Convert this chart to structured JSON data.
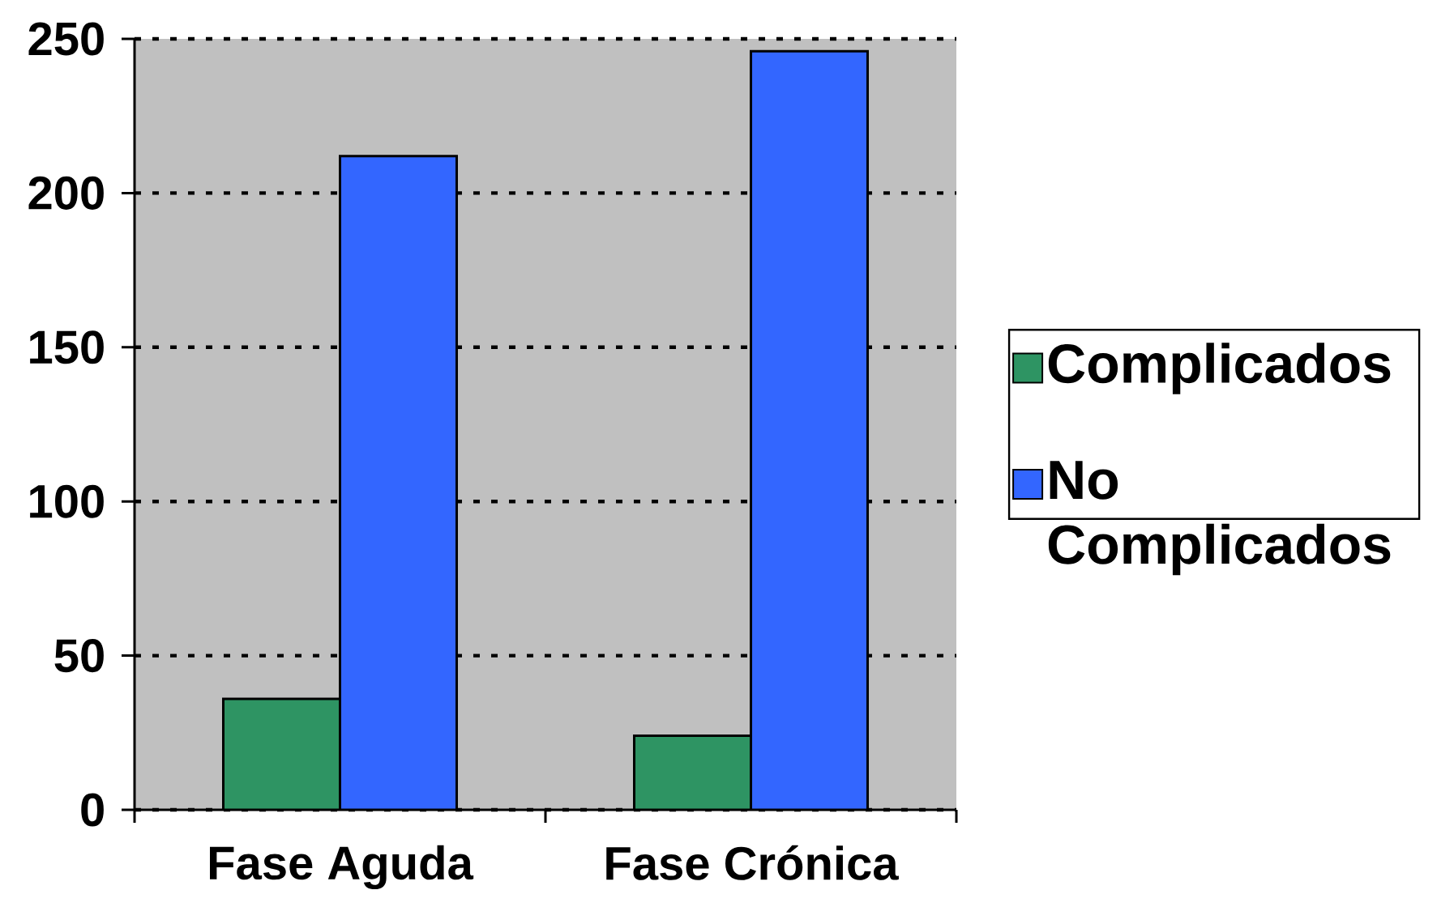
{
  "chart_data": {
    "type": "bar",
    "categories": [
      "Fase Aguda",
      "Fase Crónica"
    ],
    "series": [
      {
        "name": "Complicados",
        "color": "#2e9463",
        "values": [
          36,
          24
        ]
      },
      {
        "name": "No Complicados",
        "color": "#3366ff",
        "values": [
          212,
          246
        ]
      }
    ],
    "ylim": [
      0,
      250
    ],
    "yticks": [
      0,
      50,
      100,
      150,
      200,
      250
    ],
    "grid": "y",
    "legend": "right"
  }
}
